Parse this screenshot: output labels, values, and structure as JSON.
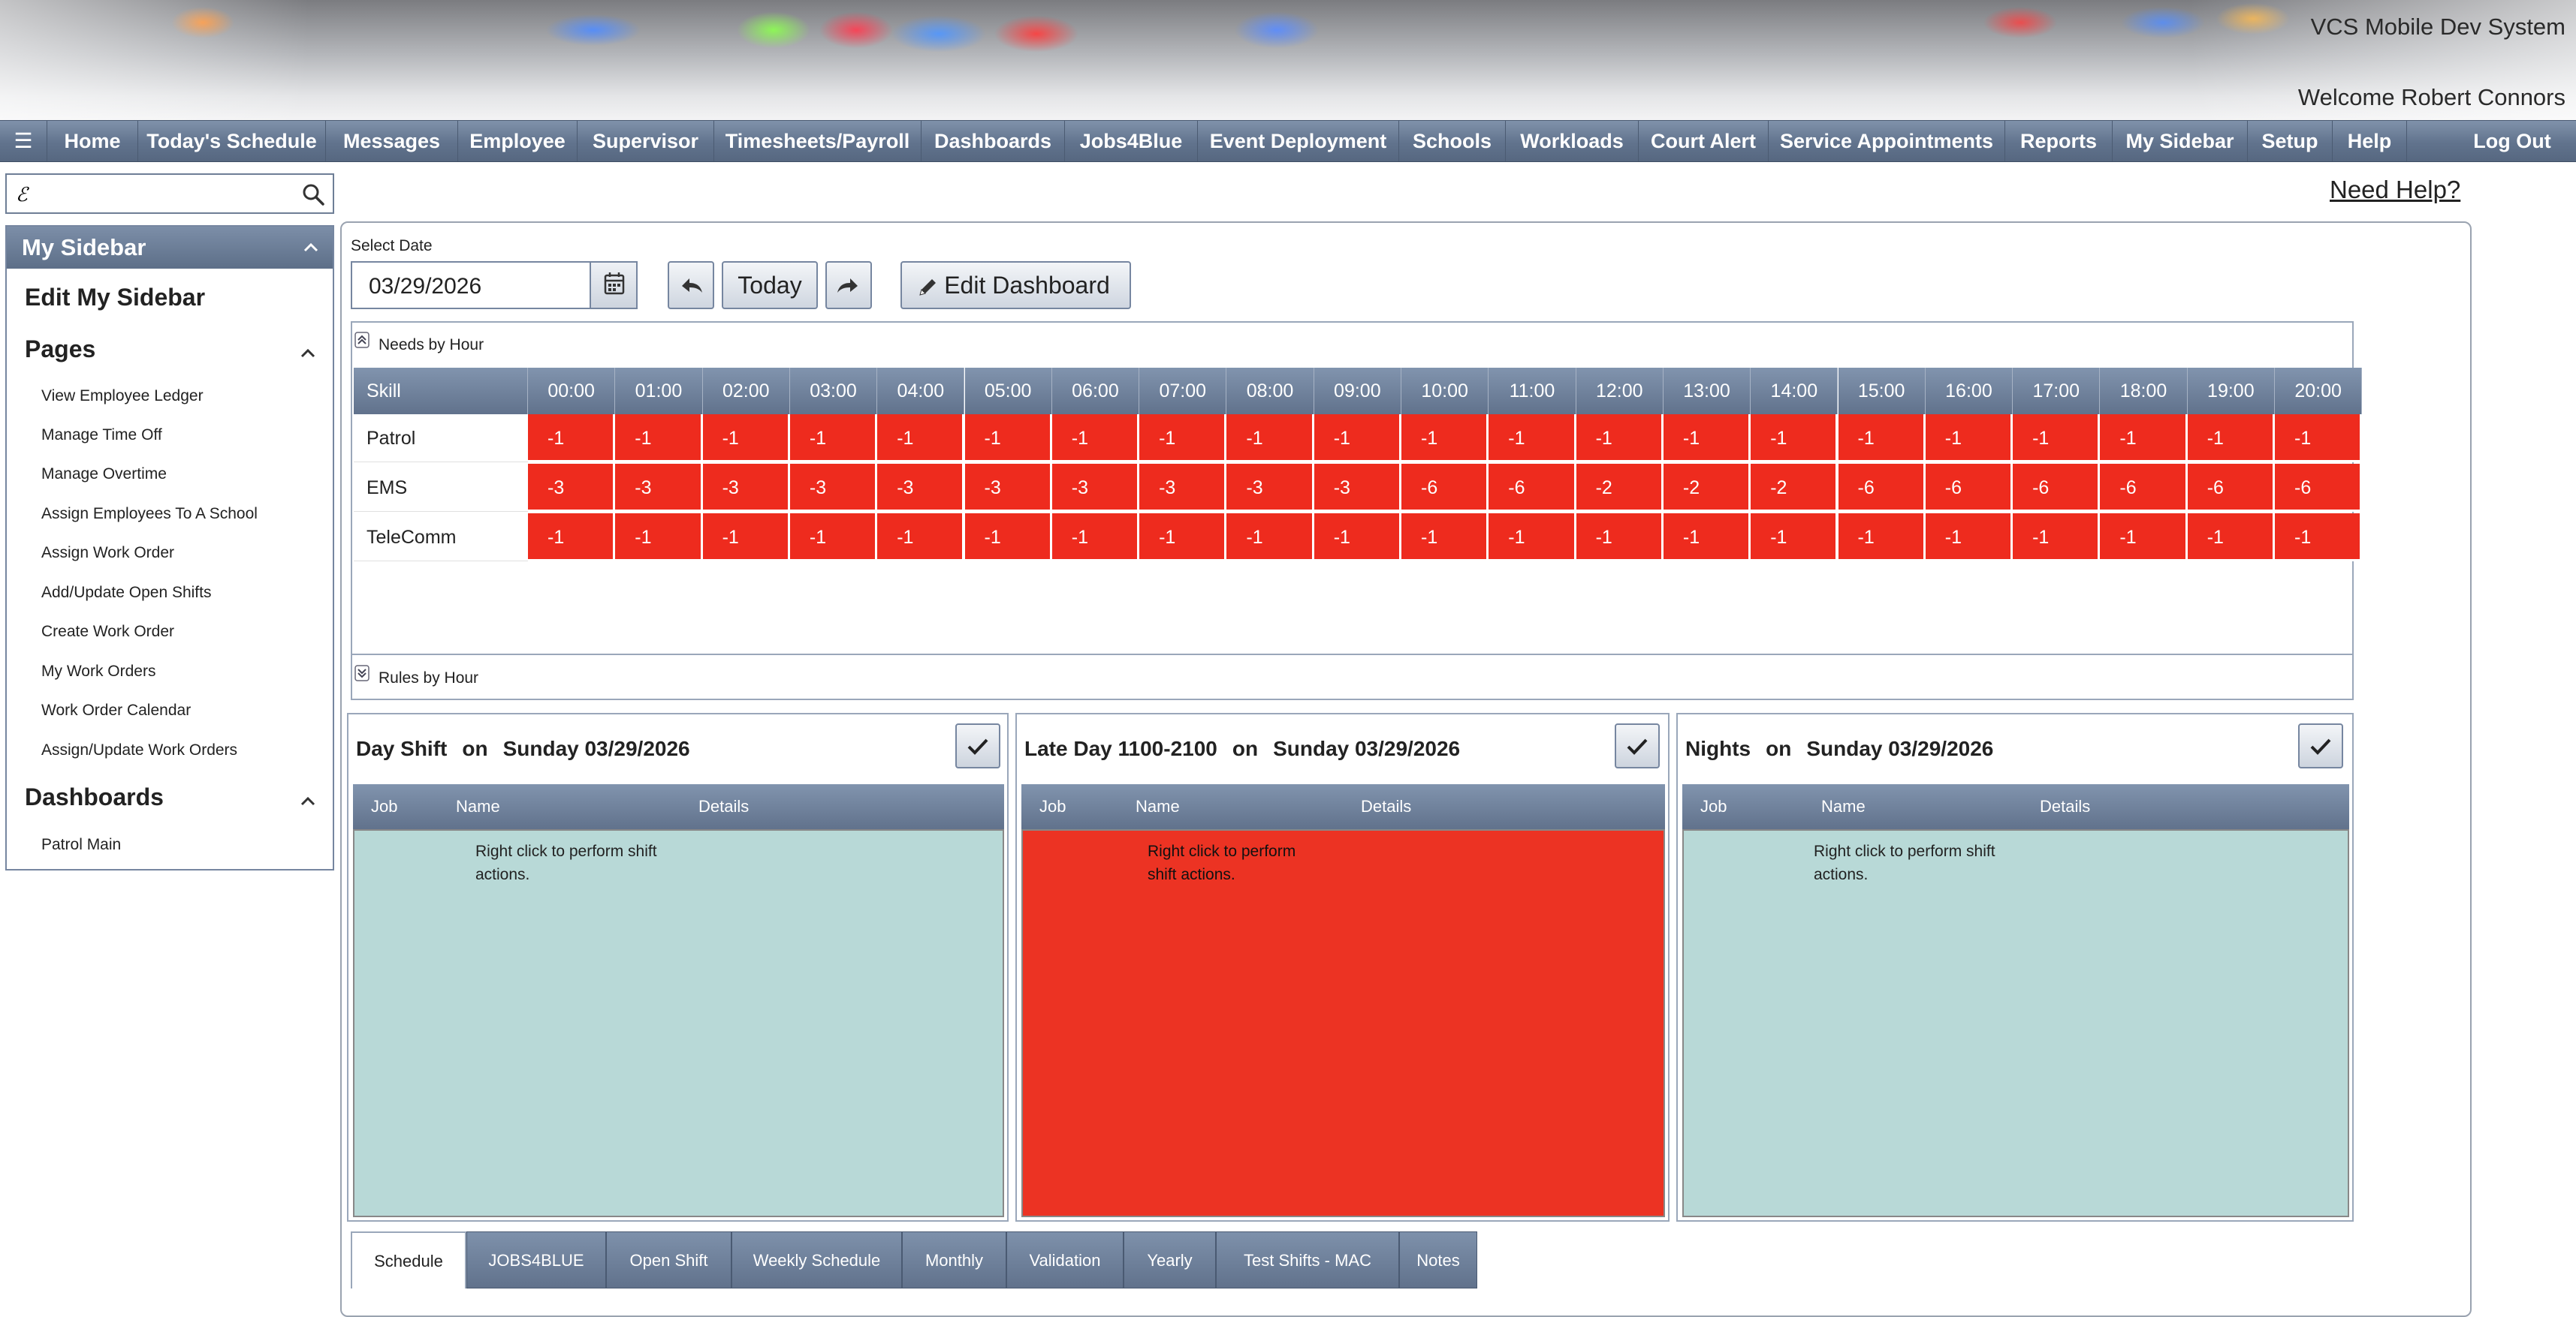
{
  "header": {
    "system_title": "VCS Mobile Dev System",
    "welcome": "Welcome Robert Connors"
  },
  "nav": {
    "menu_icon": "☰",
    "items": [
      "Home",
      "Today's Schedule",
      "Messages",
      "Employee",
      "Supervisor",
      "Timesheets/Payroll",
      "Dashboards",
      "Jobs4Blue",
      "Event Deployment",
      "Schools",
      "Workloads",
      "Court Alert",
      "Service Appointments",
      "Reports",
      "My Sidebar",
      "Setup",
      "Help"
    ],
    "logout": "Log Out"
  },
  "search": {
    "value": "ℰ"
  },
  "need_help": "Need Help?",
  "sidebar": {
    "title": "My Sidebar",
    "edit": "Edit My Sidebar",
    "pages_title": "Pages",
    "pages": [
      "View Employee Ledger",
      "Manage Time Off",
      "Manage Overtime",
      "Assign Employees To A School",
      "Assign Work Order",
      "Add/Update Open Shifts",
      "Create Work Order",
      "My Work Orders",
      "Work Order Calendar",
      "Assign/Update Work Orders"
    ],
    "dashboards_title": "Dashboards",
    "dashboards": [
      "Patrol Main"
    ]
  },
  "toolbar": {
    "select_date_label": "Select Date",
    "date_value": "03/29/2026",
    "today": "Today",
    "edit_dashboard": "Edit Dashboard"
  },
  "needs": {
    "title": "Needs by Hour",
    "skill_header": "Skill",
    "hours": [
      "00:00",
      "01:00",
      "02:00",
      "03:00",
      "04:00",
      "05:00",
      "06:00",
      "07:00",
      "08:00",
      "09:00",
      "10:00",
      "11:00",
      "12:00",
      "13:00",
      "14:00",
      "15:00",
      "16:00",
      "17:00",
      "18:00",
      "19:00",
      "20:00"
    ],
    "rows": [
      {
        "skill": "Patrol",
        "values": [
          "-1",
          "-1",
          "-1",
          "-1",
          "-1",
          "-1",
          "-1",
          "-1",
          "-1",
          "-1",
          "-1",
          "-1",
          "-1",
          "-1",
          "-1",
          "-1",
          "-1",
          "-1",
          "-1",
          "-1",
          "-1"
        ]
      },
      {
        "skill": "EMS",
        "values": [
          "-3",
          "-3",
          "-3",
          "-3",
          "-3",
          "-3",
          "-3",
          "-3",
          "-3",
          "-3",
          "-6",
          "-6",
          "-2",
          "-2",
          "-2",
          "-6",
          "-6",
          "-6",
          "-6",
          "-6",
          "-6"
        ]
      },
      {
        "skill": "TeleComm",
        "values": [
          "-1",
          "-1",
          "-1",
          "-1",
          "-1",
          "-1",
          "-1",
          "-1",
          "-1",
          "-1",
          "-1",
          "-1",
          "-1",
          "-1",
          "-1",
          "-1",
          "-1",
          "-1",
          "-1",
          "-1",
          "-1"
        ]
      }
    ],
    "cell_color": "#ee2b1e"
  },
  "rules": {
    "title": "Rules by Hour"
  },
  "shifts": [
    {
      "name": "Day Shift",
      "on": "on",
      "date": "Sunday 03/29/2026",
      "col_job": "Job",
      "col_name": "Name",
      "col_details": "Details",
      "msg": "Right click to perform shift actions.",
      "color": "#b8d9d7"
    },
    {
      "name": "Late Day 1100-2100",
      "on": "on",
      "date": "Sunday 03/29/2026",
      "col_job": "Job",
      "col_name": "Name",
      "col_details": "Details",
      "msg": "Right click to perform shift actions.",
      "color": "#ec3323"
    },
    {
      "name": "Nights",
      "on": "on",
      "date": "Sunday 03/29/2026",
      "col_job": "Job",
      "col_name": "Name",
      "col_details": "Details",
      "msg": "Right click to perform shift actions.",
      "color": "#b8d9d7"
    }
  ],
  "tabs": [
    "Schedule",
    "JOBS4BLUE",
    "Open Shift",
    "Weekly Schedule",
    "Monthly",
    "Validation",
    "Yearly",
    "Test Shifts - MAC",
    "Notes"
  ]
}
